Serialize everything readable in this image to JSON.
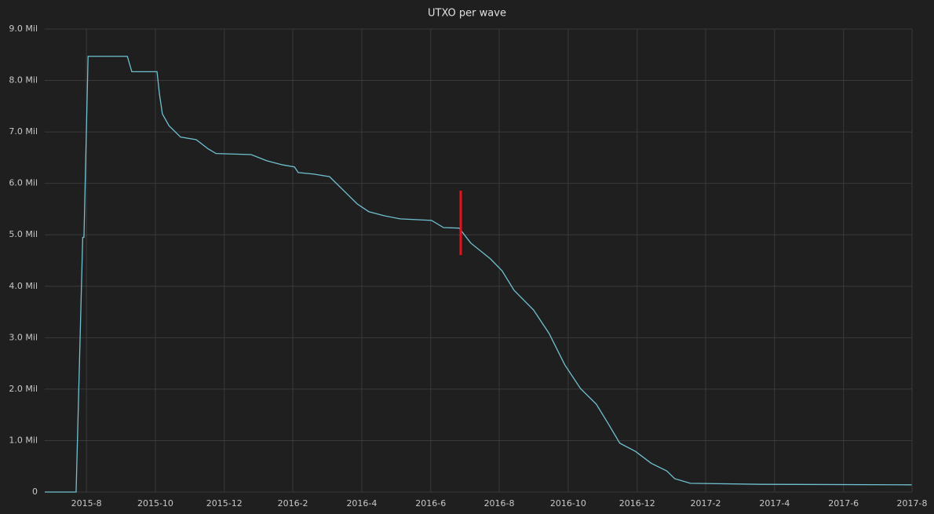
{
  "chart_data": {
    "type": "line",
    "title": "UTXO per wave",
    "x": [
      2015.482,
      2015.558,
      2015.574,
      2015.577,
      2015.587,
      2015.682,
      2015.693,
      2015.754,
      2015.76,
      2015.767,
      2015.783,
      2015.811,
      2015.849,
      2015.878,
      2015.897,
      2015.982,
      2016.02,
      2016.058,
      2016.087,
      2016.096,
      2016.134,
      2016.172,
      2016.21,
      2016.239,
      2016.267,
      2016.305,
      2016.343,
      2016.419,
      2016.448,
      2016.486,
      2016.514,
      2016.562,
      2016.59,
      2016.619,
      2016.666,
      2016.704,
      2016.742,
      2016.78,
      2016.818,
      2016.847,
      2016.875,
      2016.913,
      2016.951,
      2016.989,
      2017.008,
      2017.046,
      2017.217,
      2017.582
    ],
    "series": [
      {
        "name": "UTXO",
        "color": "#70c1d0",
        "values": [
          0,
          0,
          4.95,
          4.95,
          8.47,
          8.47,
          8.17,
          8.17,
          7.73,
          7.35,
          7.12,
          6.9,
          6.85,
          6.67,
          6.58,
          6.56,
          6.44,
          6.36,
          6.32,
          6.21,
          6.18,
          6.13,
          5.83,
          5.6,
          5.45,
          5.37,
          5.31,
          5.28,
          5.14,
          5.13,
          4.84,
          4.53,
          4.3,
          3.92,
          3.54,
          3.08,
          2.47,
          2.01,
          1.71,
          1.33,
          0.95,
          0.79,
          0.56,
          0.41,
          0.26,
          0.17,
          0.15,
          0.14
        ]
      }
    ],
    "xlim": [
      2015.482,
      2017.583
    ],
    "xticks": [
      {
        "value": 2015.583,
        "label": "2015-8"
      },
      {
        "value": 2015.75,
        "label": "2015-10"
      },
      {
        "value": 2015.917,
        "label": "2015-12"
      },
      {
        "value": 2016.083,
        "label": "2016-2"
      },
      {
        "value": 2016.25,
        "label": "2016-4"
      },
      {
        "value": 2016.417,
        "label": "2016-6"
      },
      {
        "value": 2016.583,
        "label": "2016-8"
      },
      {
        "value": 2016.75,
        "label": "2016-10"
      },
      {
        "value": 2016.917,
        "label": "2016-12"
      },
      {
        "value": 2017.083,
        "label": "2017-2"
      },
      {
        "value": 2017.25,
        "label": "2017-4"
      },
      {
        "value": 2017.417,
        "label": "2017-6"
      },
      {
        "value": 2017.583,
        "label": "2017-8"
      }
    ],
    "ylim": [
      0,
      9
    ],
    "yticks": [
      0,
      {
        "value": 1,
        "label": "1.0 Mil"
      },
      {
        "value": 2,
        "label": "2.0 Mil"
      },
      {
        "value": 3,
        "label": "3.0 Mil"
      },
      {
        "value": 4,
        "label": "4.0 Mil"
      },
      {
        "value": 5,
        "label": "5.0 Mil"
      },
      {
        "value": 6,
        "label": "6.0 Mil"
      },
      {
        "value": 7,
        "label": "7.0 Mil"
      },
      {
        "value": 8,
        "label": "8.0 Mil"
      },
      {
        "value": 9,
        "label": "9.0 Mil"
      }
    ],
    "grid": true
  }
}
